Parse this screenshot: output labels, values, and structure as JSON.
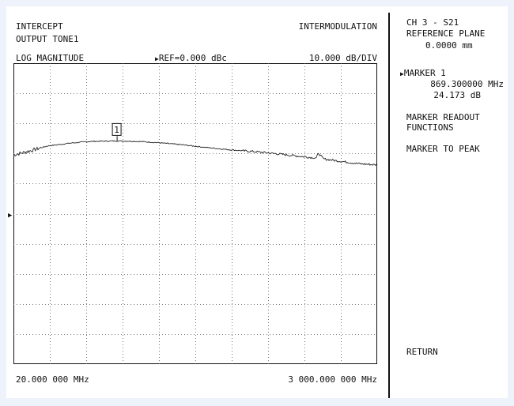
{
  "header": {
    "title_line1": "INTERCEPT",
    "title_line2": "OUTPUT TONE1",
    "mode": "INTERMODULATION",
    "format": "LOG MAGNITUDE",
    "reference": "REF=0.000 dBc",
    "scale": "10.000 dB/DIV"
  },
  "footer": {
    "start_freq": "20.000 000 MHz",
    "stop_freq": "3 000.000 000 MHz"
  },
  "marker": {
    "label": "1"
  },
  "side_panel": {
    "channel": "CH 3 - S21",
    "ref_plane_label": "REFERENCE PLANE",
    "ref_plane_value": "0.0000 mm",
    "marker_title": "MARKER 1",
    "marker_freq": "869.300000 MHz",
    "marker_level": "24.173 dB",
    "readout_line1": "MARKER READOUT",
    "readout_line2": "FUNCTIONS",
    "to_peak": "MARKER TO PEAK",
    "return": "RETURN"
  },
  "chart_data": {
    "type": "line",
    "x_unit": "MHz",
    "y_unit": "dB",
    "xlim": [
      20,
      3000
    ],
    "ylim": [
      -50,
      50
    ],
    "reference_value": 0,
    "divisions_x": 10,
    "divisions_y": 10,
    "grid": true,
    "series": [
      {
        "x": [
          20,
          150,
          300,
          500,
          650,
          869.3,
          1050,
          1200,
          1400,
          1600,
          1800,
          2000,
          2200,
          2400,
          2500,
          2520,
          2560,
          2700,
          2850,
          3000
        ],
        "y": [
          19.5,
          20.8,
          22.5,
          23.5,
          24.0,
          24.173,
          24.0,
          23.6,
          22.9,
          22.0,
          21.2,
          20.6,
          19.8,
          18.9,
          18.5,
          20.1,
          18.2,
          17.4,
          16.6,
          16.2
        ]
      }
    ],
    "marker": {
      "x": 869.3,
      "y": 24.173,
      "label": "1"
    }
  }
}
